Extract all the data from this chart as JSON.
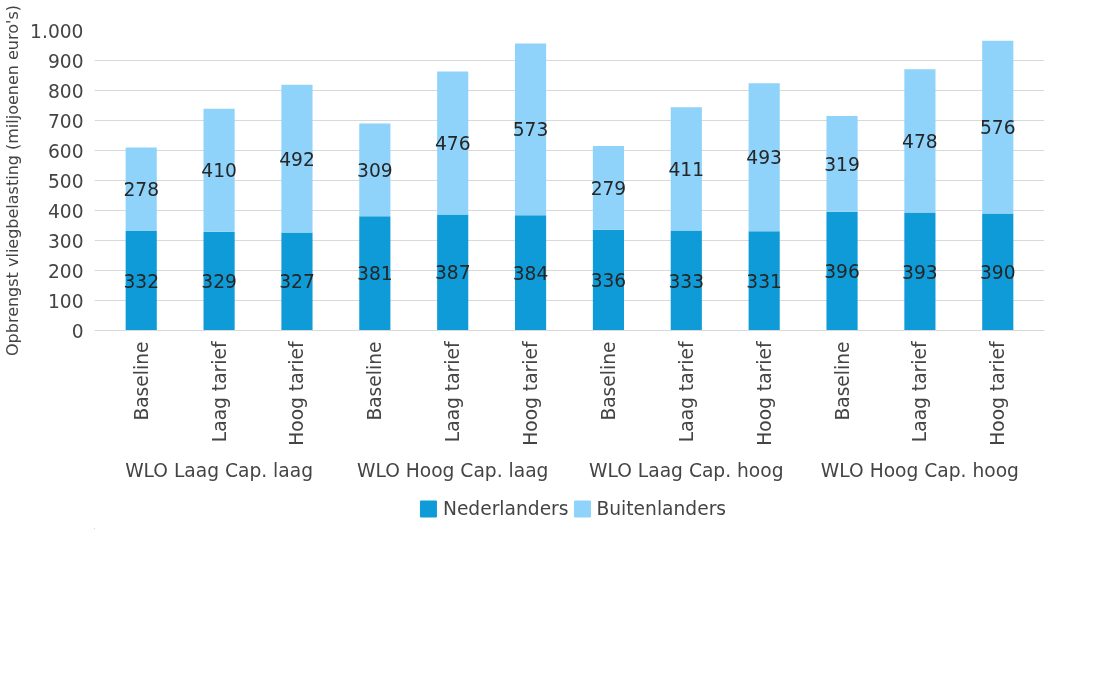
{
  "chart_data": {
    "type": "bar",
    "stacked": true,
    "ylabel": "Opbrengst vliegbelasting (miljoenen euro's)",
    "categories": [
      "Baseline",
      "Laag tarief",
      "Hoog tarief",
      "Baseline",
      "Laag tarief",
      "Hoog tarief",
      "Baseline",
      "Laag tarief",
      "Hoog tarief",
      "Baseline",
      "Laag tarief",
      "Hoog tarief"
    ],
    "series": [
      {
        "name": "Nederlanders",
        "color": "#0f9bd7",
        "values": [
          332,
          329,
          327,
          381,
          387,
          384,
          336,
          333,
          331,
          396,
          393,
          390
        ]
      },
      {
        "name": "Buitenlanders",
        "color": "#8fd3fb",
        "values": [
          278,
          410,
          492,
          309,
          476,
          573,
          279,
          411,
          493,
          319,
          478,
          576
        ]
      }
    ],
    "annotations": [
      "WLO Laag Cap. laag",
      "WLO Hoog Cap. laag",
      "WLO Laag Cap. hoog",
      "WLO Hoog Cap. hoog"
    ],
    "ylim": [
      0,
      1000
    ],
    "yticks": [
      0,
      100,
      200,
      300,
      400,
      500,
      600,
      700,
      800,
      900,
      {
        "value": 1000,
        "label": "1.000"
      }
    ],
    "grid": "y",
    "legend": "bottom",
    "data_labels": true
  }
}
